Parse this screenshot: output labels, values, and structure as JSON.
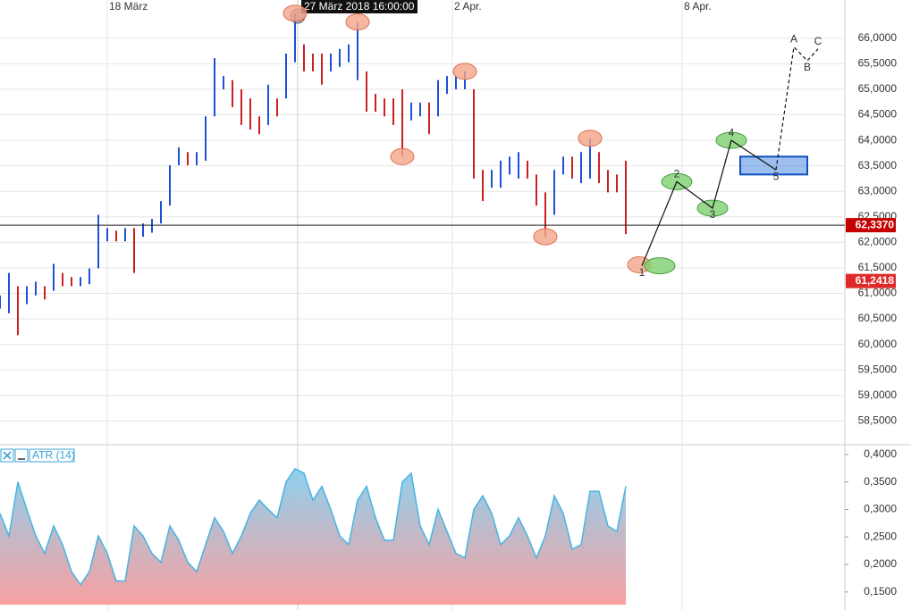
{
  "chart_data": [
    {
      "type": "ohlc",
      "x": [
        0,
        1,
        2,
        3,
        4,
        5,
        6,
        7,
        8,
        9,
        10,
        11,
        12,
        13,
        14,
        15,
        16,
        17,
        18,
        19,
        20,
        21,
        22,
        23,
        24,
        25,
        26,
        27,
        28,
        29,
        30,
        31,
        32,
        33,
        34,
        35,
        36,
        37,
        38,
        39,
        40,
        41,
        42,
        43,
        44,
        45,
        46,
        47,
        48,
        49,
        50,
        51,
        52,
        53,
        54,
        55,
        56,
        57,
        58,
        59,
        60,
        61,
        62,
        63,
        64,
        65,
        66,
        67,
        68,
        69,
        70
      ],
      "high": [
        60.96,
        61.4,
        61.14,
        61.14,
        61.23,
        61.14,
        61.58,
        61.4,
        61.32,
        61.32,
        61.49,
        62.54,
        62.28,
        62.23,
        62.28,
        62.28,
        62.37,
        62.46,
        62.81,
        63.51,
        63.86,
        63.77,
        63.77,
        64.47,
        65.61,
        65.26,
        65.18,
        65.0,
        64.82,
        64.47,
        65.09,
        64.82,
        65.7,
        66.49,
        65.88,
        65.7,
        65.7,
        65.7,
        65.79,
        65.88,
        66.32,
        65.35,
        64.91,
        64.82,
        64.82,
        65.0,
        64.74,
        64.74,
        64.74,
        65.18,
        65.26,
        65.26,
        65.35,
        65.0,
        63.42,
        63.42,
        63.6,
        63.68,
        63.77,
        63.6,
        63.33,
        62.98,
        63.42,
        63.68,
        63.68,
        63.77,
        64.04,
        63.77,
        63.42,
        63.33,
        63.6
      ],
      "low": [
        60.7,
        60.61,
        60.18,
        60.79,
        60.96,
        60.88,
        61.05,
        61.14,
        61.14,
        61.14,
        61.18,
        61.49,
        62.02,
        62.02,
        62.02,
        61.4,
        62.11,
        62.19,
        62.37,
        62.72,
        63.51,
        63.51,
        63.51,
        63.6,
        64.47,
        65.0,
        64.65,
        64.3,
        64.21,
        64.12,
        64.3,
        64.47,
        64.82,
        65.53,
        65.35,
        65.35,
        65.09,
        65.35,
        65.44,
        65.53,
        65.18,
        64.56,
        64.56,
        64.47,
        64.3,
        63.68,
        64.39,
        64.47,
        64.12,
        64.47,
        64.91,
        65.0,
        65.0,
        63.25,
        62.81,
        63.07,
        63.07,
        63.33,
        63.25,
        63.25,
        62.72,
        62.11,
        62.54,
        63.33,
        63.25,
        63.16,
        63.25,
        63.16,
        62.98,
        62.98,
        62.16
      ],
      "up_color": "#1f4fd8",
      "down_color": "#cc2020",
      "xlim": [
        0,
        94.5
      ],
      "ylim": [
        58.05,
        66.75
      ],
      "xticks": [
        {
          "value": 12,
          "label": "18 März"
        },
        {
          "value": 50.6,
          "label": "2 Apr."
        },
        {
          "value": 76.3,
          "label": "8 Apr."
        }
      ],
      "yticks": [
        {
          "value": 58.5,
          "label": "58,5000"
        },
        {
          "value": 59,
          "label": "59,0000"
        },
        {
          "value": 59.5,
          "label": "59,5000"
        },
        {
          "value": 60,
          "label": "60,0000"
        },
        {
          "value": 60.5,
          "label": "60,5000"
        },
        {
          "value": 61,
          "label": "61,0000"
        },
        {
          "value": 61.5,
          "label": "61,5000"
        },
        {
          "value": 62,
          "label": "62,0000"
        },
        {
          "value": 62.5,
          "label": "62,5000"
        },
        {
          "value": 63,
          "label": "63,0000"
        },
        {
          "value": 63.5,
          "label": "63,5000"
        },
        {
          "value": 64,
          "label": "64,0000"
        },
        {
          "value": 64.5,
          "label": "64,5000"
        },
        {
          "value": 65,
          "label": "65,0000"
        },
        {
          "value": 65.5,
          "label": "65,5000"
        },
        {
          "value": 66,
          "label": "66,0000"
        }
      ],
      "grid": true,
      "crosshair": {
        "x": 33.3,
        "label": "27 März 2018 16:00:00"
      },
      "price_tags": [
        {
          "value": 62.337,
          "label": "62,3370",
          "color": "#c40000"
        },
        {
          "value": 61.2418,
          "label": "61,2418",
          "color": "#e02a2a"
        }
      ],
      "pivots": {
        "color": "#f4a58a",
        "x": [
          33,
          40,
          45,
          52,
          61,
          66,
          71.5
        ],
        "y": [
          66.49,
          66.32,
          63.68,
          65.35,
          62.11,
          64.04,
          61.56
        ]
      },
      "waves": {
        "color": "#7fcf6e",
        "labels": [
          "1",
          "2",
          "3",
          "4",
          "5",
          "A",
          "B",
          "C"
        ],
        "x": [
          71.8,
          75.7,
          79.7,
          81.8,
          86.8,
          88.8,
          90.3,
          91.5
        ],
        "y": [
          61.54,
          63.19,
          62.67,
          64.0,
          63.42,
          65.83,
          65.56,
          65.79
        ]
      },
      "target_zone": {
        "color": "#3b7fe0",
        "x": [
          82.8,
          90.3
        ],
        "y": [
          63.33,
          63.68
        ]
      }
    },
    {
      "type": "area",
      "title": "ATR (14)",
      "x": [
        0,
        1,
        2,
        3,
        4,
        5,
        6,
        7,
        8,
        9,
        10,
        11,
        12,
        13,
        14,
        15,
        16,
        17,
        18,
        19,
        20,
        21,
        22,
        23,
        24,
        25,
        26,
        27,
        28,
        29,
        30,
        31,
        32,
        33,
        34,
        35,
        36,
        37,
        38,
        39,
        40,
        41,
        42,
        43,
        44,
        45,
        46,
        47,
        48,
        49,
        50,
        51,
        52,
        53,
        54,
        55,
        56,
        57,
        58,
        59,
        60,
        61,
        62,
        63,
        64,
        65,
        66,
        67,
        68,
        69,
        70
      ],
      "values": [
        0.293,
        0.252,
        0.35,
        0.3,
        0.252,
        0.22,
        0.27,
        0.236,
        0.187,
        0.163,
        0.187,
        0.252,
        0.22,
        0.17,
        0.17,
        0.27,
        0.252,
        0.22,
        0.204,
        0.27,
        0.244,
        0.204,
        0.187,
        0.236,
        0.285,
        0.26,
        0.22,
        0.252,
        0.293,
        0.317,
        0.3,
        0.285,
        0.35,
        0.374,
        0.366,
        0.317,
        0.342,
        0.3,
        0.252,
        0.236,
        0.317,
        0.342,
        0.285,
        0.244,
        0.244,
        0.35,
        0.366,
        0.27,
        0.236,
        0.3,
        0.26,
        0.22,
        0.212,
        0.3,
        0.325,
        0.293,
        0.236,
        0.252,
        0.285,
        0.252,
        0.212,
        0.252,
        0.325,
        0.293,
        0.228,
        0.236,
        0.333,
        0.333,
        0.27,
        0.26,
        0.342
      ],
      "color": "#46b4e0",
      "xlim": [
        0,
        94.5
      ],
      "ylim": [
        0.127,
        0.416
      ],
      "yticks": [
        {
          "value": 0.15,
          "label": "0,1500"
        },
        {
          "value": 0.2,
          "label": "0,2000"
        },
        {
          "value": 0.25,
          "label": "0,2500"
        },
        {
          "value": 0.3,
          "label": "0,3000"
        },
        {
          "value": 0.35,
          "label": "0,3500"
        },
        {
          "value": 0.4,
          "label": "0,4000"
        }
      ]
    }
  ]
}
